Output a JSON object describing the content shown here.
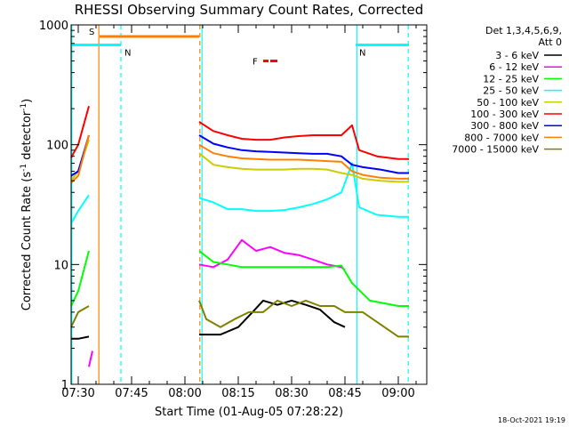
{
  "chart_data": {
    "type": "line",
    "title": "RHESSI Observing Summary Count Rates, Corrected",
    "xlabel": "Start Time (01-Aug-05 07:28:22)",
    "ylabel": "Corrected Count Rate (s⁻¹ detector⁻¹)",
    "ylabel_main": "Corrected Count Rate (s",
    "ylabel_sup1": "-1",
    "ylabel_mid": " detector",
    "ylabel_sup2": "-1",
    "ylabel_end": ")",
    "x_range": [
      "07:28",
      "09:08"
    ],
    "y_range": [
      1,
      1000
    ],
    "y_scale": "log",
    "x_ticks": [
      "07:30",
      "07:45",
      "08:00",
      "08:15",
      "08:30",
      "08:45",
      "09:00"
    ],
    "x_tick_minutes": [
      30,
      45,
      60,
      75,
      90,
      105,
      120
    ],
    "y_ticks": [
      "1",
      "10",
      "100",
      "1000"
    ],
    "y_tick_values": [
      1,
      10,
      100,
      1000
    ],
    "legend": {
      "header_line1": "Det 1,3,4,5,6,9,",
      "header_line2": "Att 0",
      "placement": "right"
    },
    "series": [
      {
        "name": "3 - 6 keV",
        "color": "#000000",
        "values": [
          [
            28,
            2.4
          ],
          [
            30,
            2.4
          ],
          [
            33,
            2.5
          ],
          [
            64,
            2.6
          ],
          [
            70,
            2.6
          ],
          [
            75,
            3
          ],
          [
            79,
            4
          ],
          [
            82,
            5
          ],
          [
            86,
            4.6
          ],
          [
            90,
            5
          ],
          [
            94,
            4.6
          ],
          [
            98,
            4.2
          ],
          [
            102,
            3.3
          ],
          [
            105,
            3
          ]
        ]
      },
      {
        "name": "6 - 12 keV",
        "color": "#ff00ff",
        "values": [
          [
            33,
            1.4
          ],
          [
            34,
            1.9
          ],
          [
            64,
            10
          ],
          [
            68,
            9.5
          ],
          [
            72,
            11
          ],
          [
            76,
            16
          ],
          [
            80,
            13
          ],
          [
            84,
            14
          ],
          [
            88,
            12.5
          ],
          [
            92,
            12
          ],
          [
            96,
            11
          ],
          [
            100,
            10
          ],
          [
            104,
            9.5
          ],
          [
            105,
            9
          ]
        ]
      },
      {
        "name": "12 - 25 keV",
        "color": "#00ff00",
        "values": [
          [
            28,
            4.5
          ],
          [
            30,
            6
          ],
          [
            33,
            13
          ],
          [
            64,
            13
          ],
          [
            68,
            10.5
          ],
          [
            72,
            10
          ],
          [
            76,
            9.5
          ],
          [
            80,
            9.5
          ],
          [
            84,
            9.5
          ],
          [
            88,
            9.5
          ],
          [
            92,
            9.5
          ],
          [
            96,
            9.5
          ],
          [
            100,
            9.5
          ],
          [
            104,
            9.8
          ],
          [
            107,
            7
          ],
          [
            112,
            5
          ],
          [
            120,
            4.5
          ],
          [
            123,
            4.5
          ]
        ]
      },
      {
        "name": "25 - 50 keV",
        "color": "#00ffff",
        "values": [
          [
            28,
            22
          ],
          [
            30,
            28
          ],
          [
            33,
            38
          ],
          [
            64,
            36
          ],
          [
            68,
            33
          ],
          [
            72,
            29
          ],
          [
            76,
            29
          ],
          [
            80,
            28
          ],
          [
            84,
            28
          ],
          [
            88,
            28.5
          ],
          [
            92,
            30
          ],
          [
            96,
            32
          ],
          [
            100,
            35
          ],
          [
            104,
            40
          ],
          [
            107,
            70
          ],
          [
            109,
            30
          ],
          [
            114,
            26
          ],
          [
            120,
            25
          ],
          [
            123,
            25
          ]
        ]
      },
      {
        "name": "50 - 100 keV",
        "color": "#cccc00",
        "values": [
          [
            28,
            50
          ],
          [
            30,
            60
          ],
          [
            33,
            110
          ],
          [
            64,
            85
          ],
          [
            68,
            68
          ],
          [
            72,
            65
          ],
          [
            76,
            63
          ],
          [
            80,
            62
          ],
          [
            84,
            62
          ],
          [
            88,
            62
          ],
          [
            92,
            63
          ],
          [
            96,
            63
          ],
          [
            100,
            62
          ],
          [
            104,
            58
          ],
          [
            107,
            56
          ],
          [
            110,
            52
          ],
          [
            115,
            50
          ],
          [
            120,
            49
          ],
          [
            123,
            49
          ]
        ]
      },
      {
        "name": "100 - 300 keV",
        "color": "#ff0000",
        "values": [
          [
            28,
            78
          ],
          [
            30,
            100
          ],
          [
            33,
            210
          ],
          [
            64,
            155
          ],
          [
            68,
            130
          ],
          [
            72,
            120
          ],
          [
            76,
            112
          ],
          [
            80,
            110
          ],
          [
            84,
            110
          ],
          [
            88,
            115
          ],
          [
            92,
            118
          ],
          [
            96,
            120
          ],
          [
            100,
            120
          ],
          [
            104,
            120
          ],
          [
            107,
            145
          ],
          [
            109,
            90
          ],
          [
            114,
            80
          ],
          [
            120,
            76
          ],
          [
            123,
            76
          ]
        ]
      },
      {
        "name": "300 - 800 keV",
        "color": "#0000ff",
        "values": [
          [
            28,
            55
          ],
          [
            30,
            60
          ],
          [
            33,
            120
          ],
          [
            64,
            120
          ],
          [
            68,
            102
          ],
          [
            72,
            95
          ],
          [
            76,
            90
          ],
          [
            80,
            88
          ],
          [
            84,
            87
          ],
          [
            88,
            86
          ],
          [
            92,
            85
          ],
          [
            96,
            84
          ],
          [
            100,
            84
          ],
          [
            104,
            80
          ],
          [
            107,
            68
          ],
          [
            110,
            65
          ],
          [
            115,
            62
          ],
          [
            120,
            58
          ],
          [
            123,
            58
          ]
        ]
      },
      {
        "name": "800 - 7000 keV",
        "color": "#ff8000",
        "values": [
          [
            28,
            48
          ],
          [
            30,
            55
          ],
          [
            33,
            120
          ],
          [
            64,
            100
          ],
          [
            68,
            85
          ],
          [
            72,
            80
          ],
          [
            76,
            77
          ],
          [
            80,
            76
          ],
          [
            84,
            75
          ],
          [
            88,
            75
          ],
          [
            92,
            75
          ],
          [
            96,
            74
          ],
          [
            100,
            73
          ],
          [
            104,
            72
          ],
          [
            107,
            60
          ],
          [
            110,
            56
          ],
          [
            115,
            53
          ],
          [
            120,
            52
          ],
          [
            123,
            52
          ]
        ]
      },
      {
        "name": "7000 - 15000 keV",
        "color": "#808000",
        "values": [
          [
            28,
            3
          ],
          [
            30,
            4
          ],
          [
            33,
            4.5
          ],
          [
            64,
            5
          ],
          [
            66,
            3.5
          ],
          [
            70,
            3
          ],
          [
            74,
            3.5
          ],
          [
            78,
            4
          ],
          [
            82,
            4
          ],
          [
            86,
            5
          ],
          [
            90,
            4.5
          ],
          [
            94,
            5
          ],
          [
            98,
            4.5
          ],
          [
            102,
            4.5
          ],
          [
            105,
            4
          ],
          [
            110,
            4
          ],
          [
            120,
            2.5
          ],
          [
            123,
            2.5
          ]
        ]
      }
    ],
    "flags": [
      {
        "label": "S",
        "color": "#ff8000",
        "start": 36,
        "end": 64,
        "level": 800
      },
      {
        "label": "N",
        "color": "#00ffff",
        "start": 28,
        "end": 42,
        "level": 680
      },
      {
        "label": "N",
        "color": "#00ffff",
        "start": 108,
        "end": 123,
        "level": 680
      },
      {
        "label": "F",
        "color": "#ff0000",
        "start": 82,
        "end": 86,
        "level": 500
      }
    ],
    "vlines": [
      {
        "color": "#00ffff",
        "style": "solid",
        "at": 28.2
      },
      {
        "color": "#ff8000",
        "style": "solid",
        "at": 35.8
      },
      {
        "color": "#00ffff",
        "style": "dashed",
        "at": 42.0
      },
      {
        "color": "#ff8000",
        "style": "dashed",
        "at": 64.2
      },
      {
        "color": "#00ffff",
        "style": "solid",
        "at": 64.8
      },
      {
        "color": "#00ffff",
        "style": "solid",
        "at": 108.4
      },
      {
        "color": "#00ffff",
        "style": "dashed",
        "at": 122.8
      }
    ],
    "timestamp": "18-Oct-2021 19:19"
  }
}
